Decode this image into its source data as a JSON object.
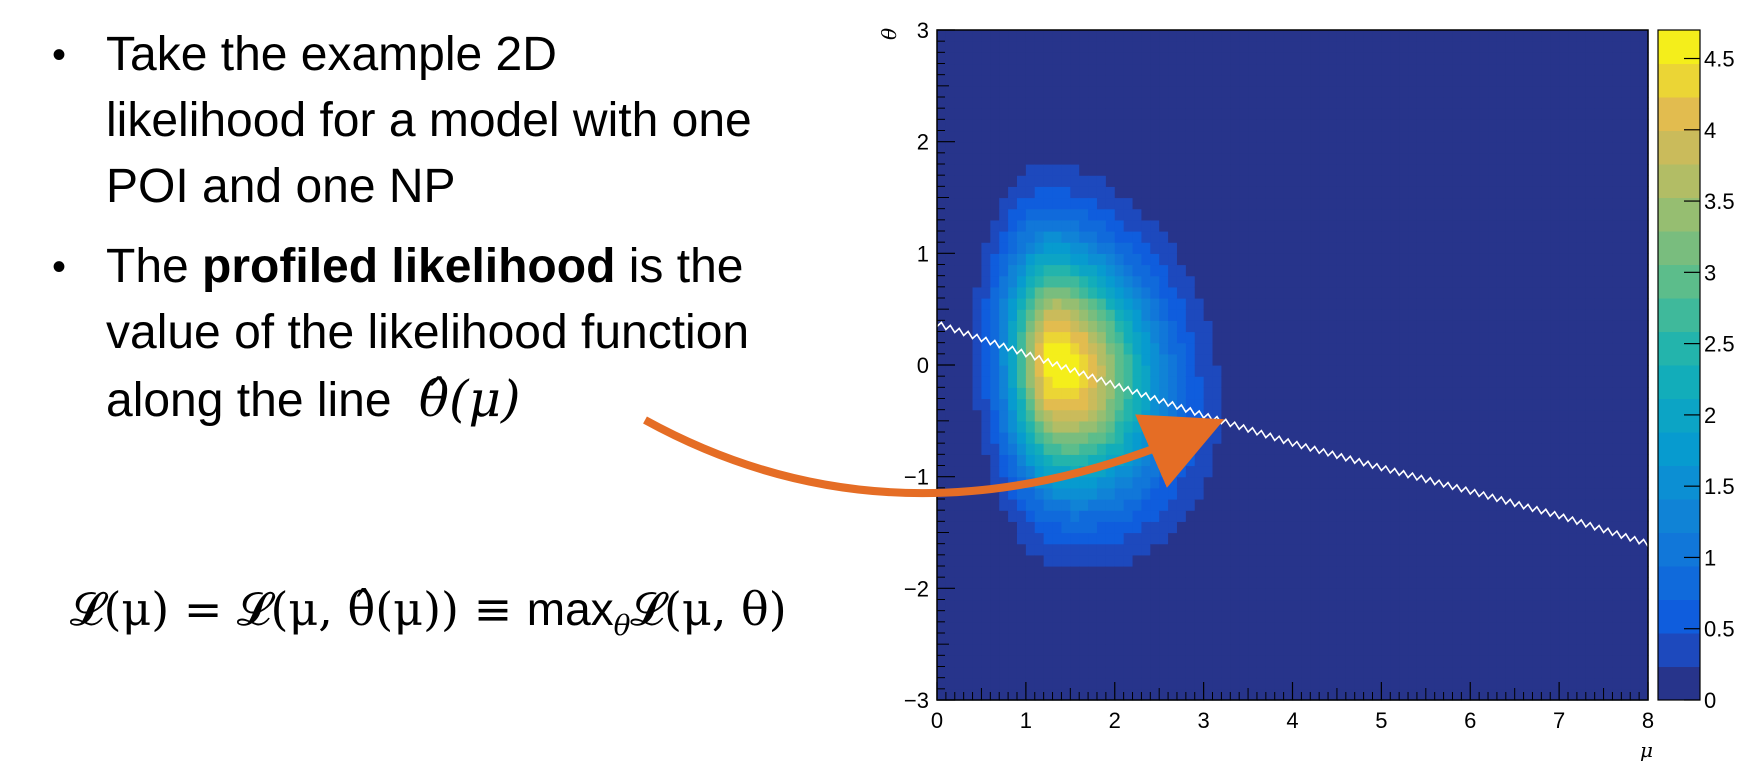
{
  "bullets": [
    {
      "text": "Take the example 2D likelihood for a model with one POI and one NP"
    },
    {
      "pre": "The ",
      "bold": "profiled likelihood",
      "post": " is the value of the likelihood function along the line",
      "math": "θ̂(μ)"
    }
  ],
  "formula": {
    "lhs": "𝓛(μ) = 𝓛(μ, θ̂(μ)) ≡ ",
    "max": "max",
    "sub": "θ",
    "rhs": "𝓛(μ, θ)"
  },
  "colors": {
    "arrow": "#e56d25",
    "profile_line": "#ffffff",
    "background": "#27348b"
  },
  "chart_data": {
    "type": "heatmap",
    "xlabel": "μ",
    "ylabel": "θ",
    "xlim": [
      0,
      8
    ],
    "ylim": [
      -3,
      3
    ],
    "zlim": [
      0,
      4.7
    ],
    "x_ticks": [
      "0",
      "1",
      "2",
      "3",
      "4",
      "5",
      "6",
      "7",
      "8"
    ],
    "y_ticks": [
      "−3",
      "−2",
      "−1",
      "0",
      "1",
      "2",
      "3"
    ],
    "z_ticks": [
      "0",
      "0.5",
      "1",
      "1.5",
      "2",
      "2.5",
      "3",
      "3.5",
      "4",
      "4.5"
    ],
    "peak": {
      "mu": 1.35,
      "theta": 0.0,
      "value": 4.7
    },
    "profile_line": {
      "mu": [
        0.0,
        1.0,
        2.0,
        3.0,
        4.0,
        5.0,
        6.0,
        7.0,
        8.0
      ],
      "theta": [
        0.37,
        0.1,
        -0.18,
        -0.45,
        -0.7,
        -0.92,
        -1.13,
        -1.35,
        -1.6
      ]
    }
  }
}
